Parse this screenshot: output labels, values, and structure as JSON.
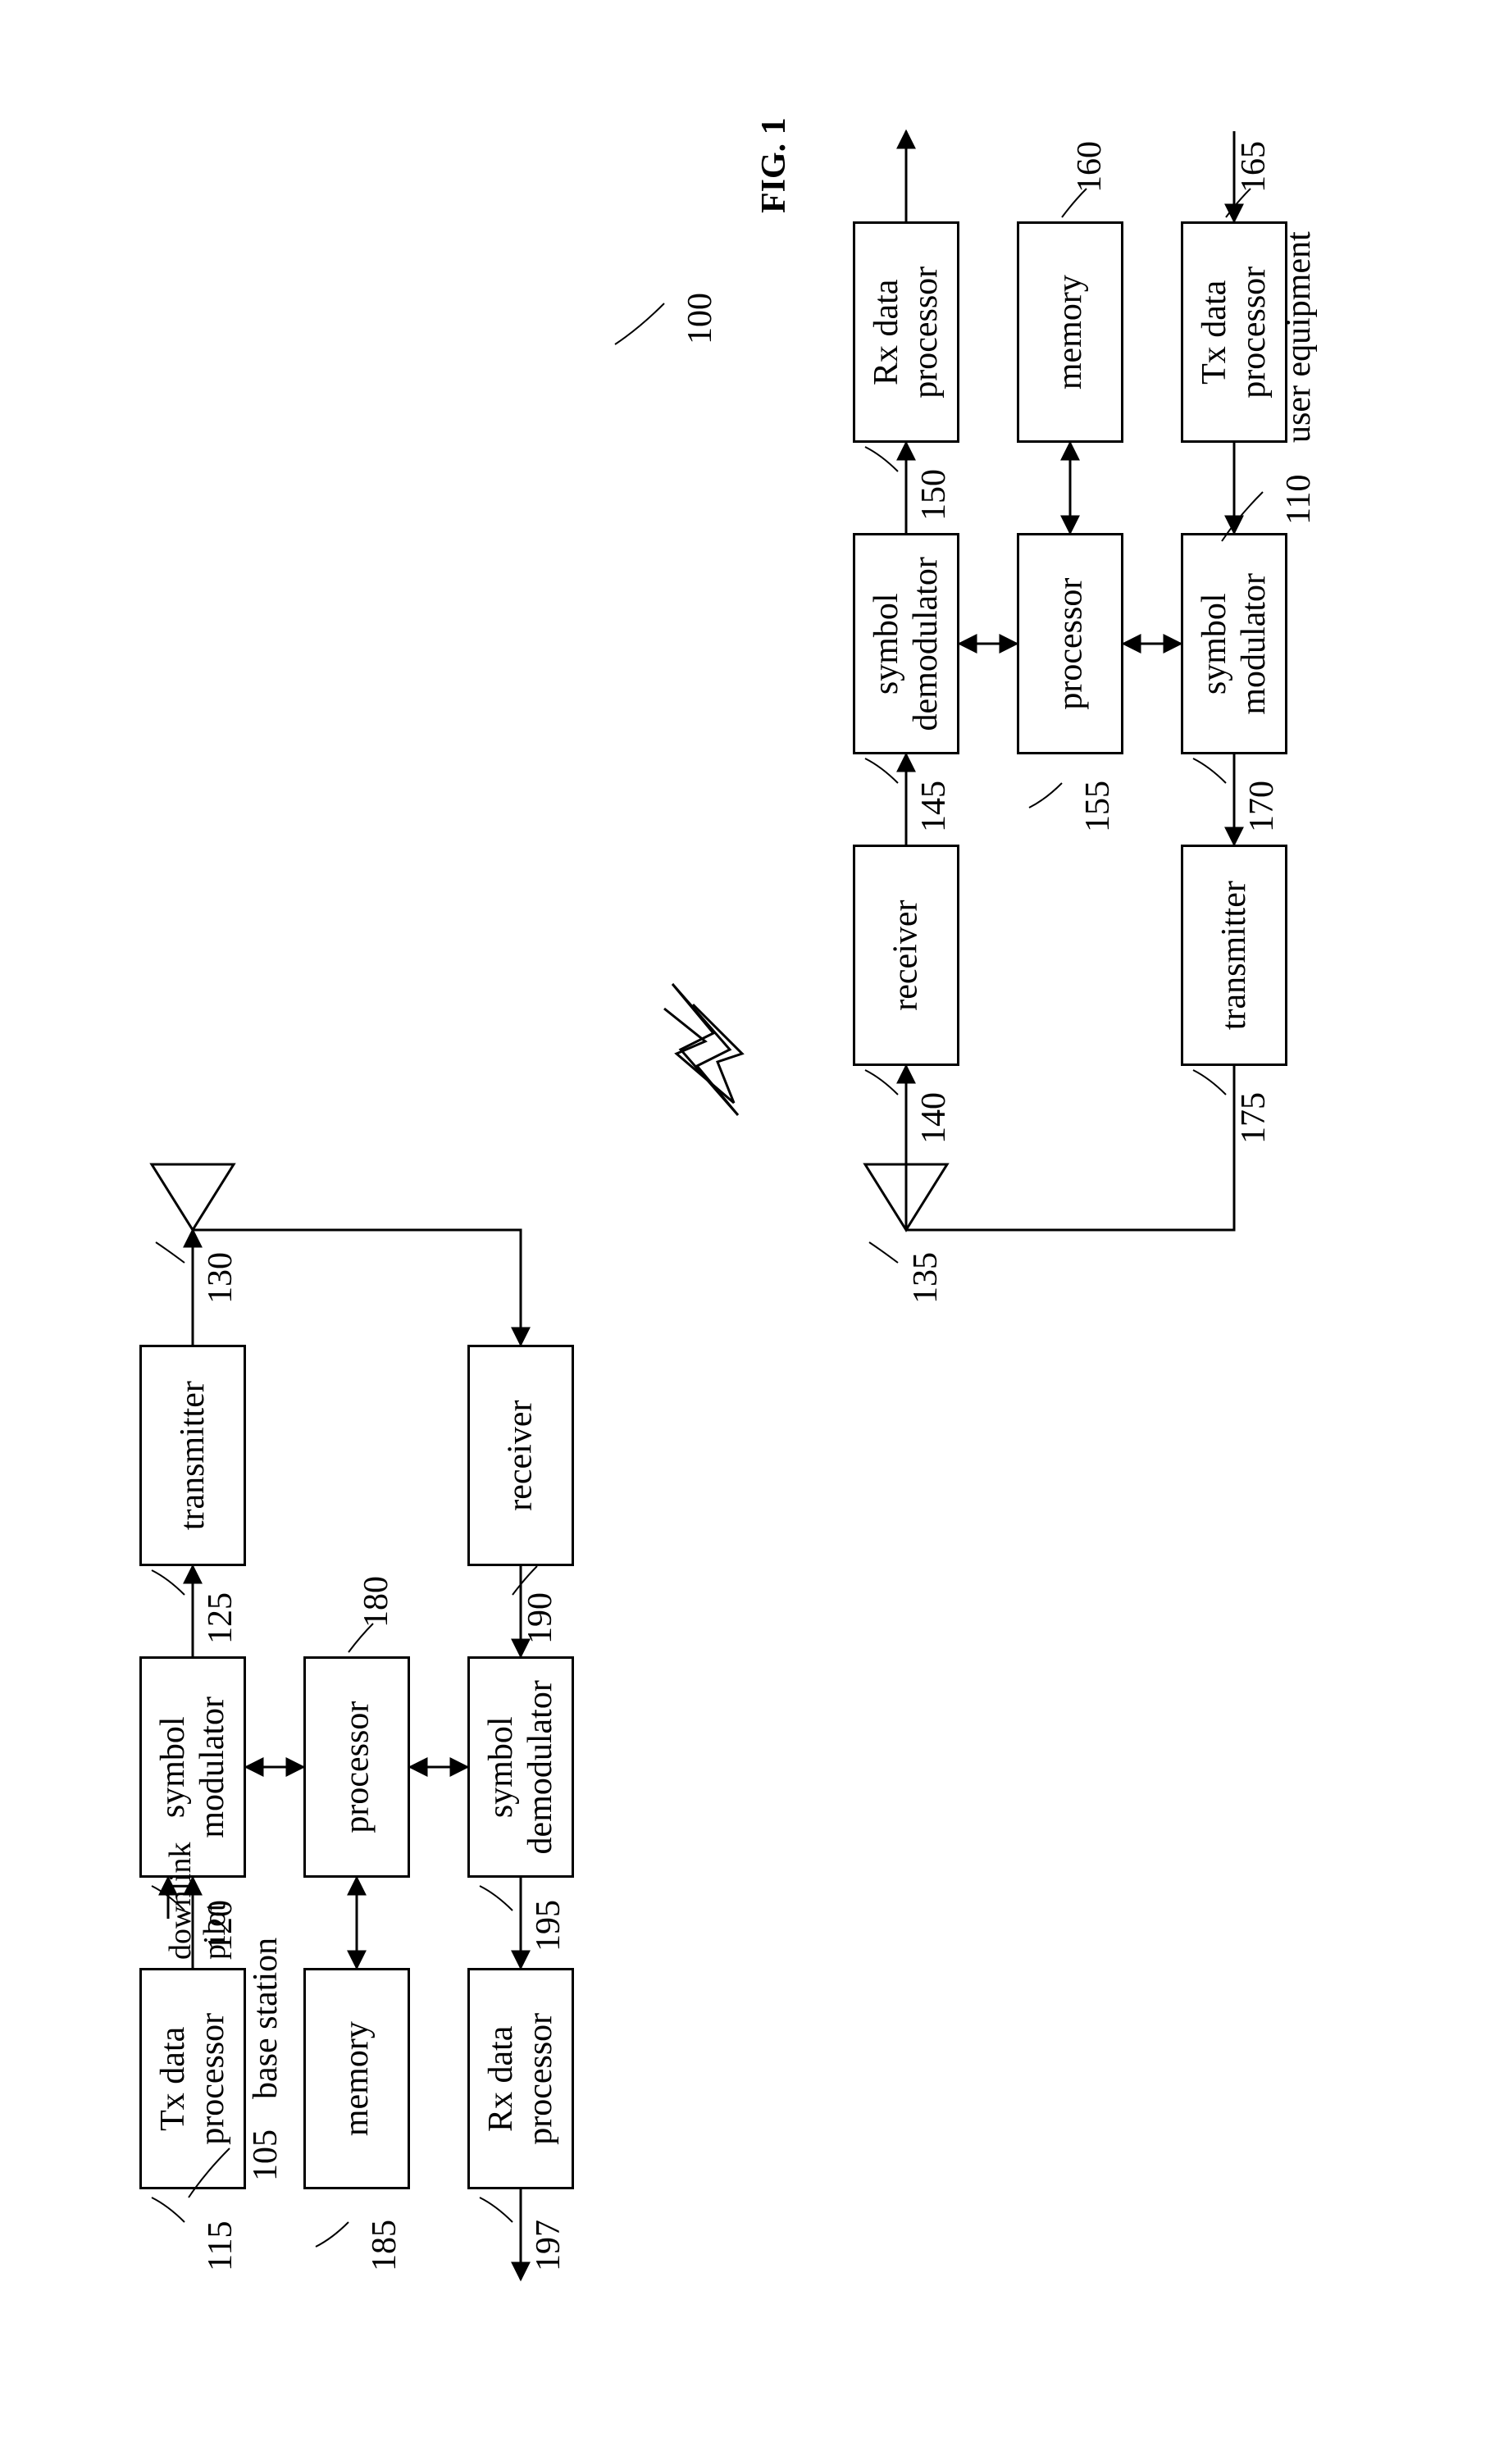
{
  "figure": {
    "title": "FIG. 1",
    "system_ref": "100",
    "base_station_label": "base station",
    "base_station_ref": "105",
    "ue_label": "user equipment",
    "ue_ref": "110",
    "downlink_pilot": "downlink\npilot"
  },
  "bs": {
    "tx_data": {
      "label": "Tx data\nprocessor",
      "ref": "115"
    },
    "sym_mod": {
      "label": "symbol\nmodulator",
      "ref": "120"
    },
    "transmitter": {
      "label": "transmitter",
      "ref": "125"
    },
    "antenna_ref": "130",
    "processor": {
      "label": "processor",
      "ref": "180"
    },
    "memory": {
      "label": "memory",
      "ref": "185"
    },
    "receiver": {
      "label": "receiver",
      "ref": "190"
    },
    "sym_demod": {
      "label": "symbol\ndemodulator",
      "ref": "195"
    },
    "rx_data": {
      "label": "Rx data\nprocessor",
      "ref": "197"
    }
  },
  "ue": {
    "antenna_ref": "135",
    "receiver": {
      "label": "receiver",
      "ref": "140"
    },
    "sym_demod": {
      "label": "symbol\ndemodulator",
      "ref": "145"
    },
    "rx_data": {
      "label": "Rx data\nprocessor",
      "ref": "150"
    },
    "processor": {
      "label": "processor",
      "ref": "155"
    },
    "memory": {
      "label": "memory",
      "ref": "160"
    },
    "tx_data": {
      "label": "Tx data\nprocessor",
      "ref": "165"
    },
    "sym_mod": {
      "label": "symbol\nmodulator",
      "ref": "170"
    },
    "transmitter": {
      "label": "transmitter",
      "ref": "175"
    }
  },
  "style": {
    "stroke": "#000000",
    "stroke_width": 3,
    "font_family": "Georgia, 'Times New Roman', serif",
    "box_font_size": 42,
    "label_font_size": 42,
    "title_font_size": 56,
    "bg": "#ffffff"
  }
}
